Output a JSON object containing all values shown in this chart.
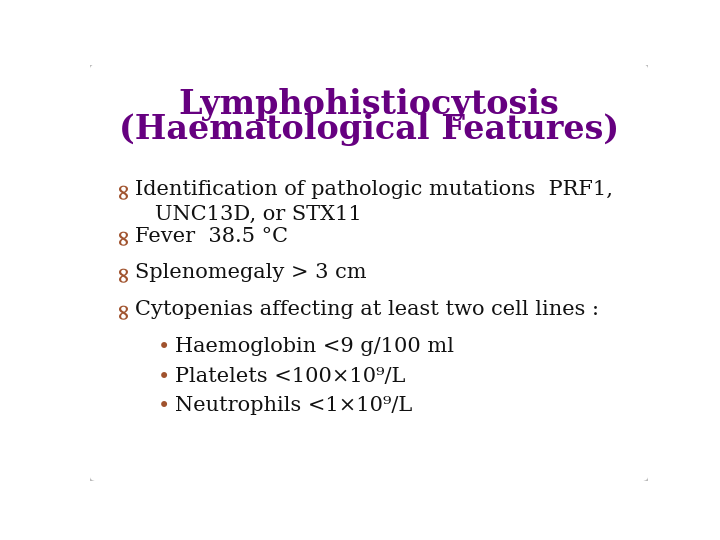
{
  "title_line1": "Lymphohistiocytosis",
  "title_line2": "(Haematological Features)",
  "title_color": "#660080",
  "bg_color": "#ffffff",
  "border_color": "#bbbbbb",
  "bullet_color": "#a0522d",
  "text_color": "#111111",
  "items": [
    "Identification of pathologic mutations  PRF1,\n   UNC13D, or STX11",
    "Fever  38.5 °C",
    "Splenomegaly > 3 cm",
    "Cytopenias affecting at least two cell lines :"
  ],
  "sub_items": [
    "Haemoglobin <9 g/100 ml",
    "Platelets <100×10⁹/L",
    "Neutrophils <1×10⁹/L"
  ],
  "title_fontsize": 24,
  "body_fontsize": 15,
  "sub_fontsize": 15
}
